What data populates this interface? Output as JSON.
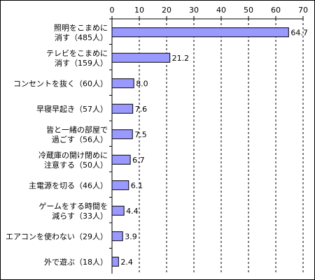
{
  "chart_data": {
    "type": "bar",
    "orientation": "horizontal",
    "categories": [
      [
        "照明をこまめに",
        "消す（485人）"
      ],
      [
        "テレビをこまめに",
        "消す（159人）"
      ],
      [
        "コンセントを抜く（60人）"
      ],
      [
        "早寝早起き（57人）"
      ],
      [
        "皆と一緒の部屋で",
        "過ごす（56人）"
      ],
      [
        "冷蔵庫の開け閉めに",
        "注意する（50人）"
      ],
      [
        "主電源を切る（46人）"
      ],
      [
        "ゲームをする時間を",
        "減らす（33人）"
      ],
      [
        "エアコンを使わない（29人）"
      ],
      [
        "外で遊ぶ（18人）"
      ]
    ],
    "values": [
      64.7,
      21.2,
      8.0,
      7.6,
      7.5,
      6.7,
      6.1,
      4.4,
      3.9,
      2.4
    ],
    "value_labels": [
      "64.7",
      "21.2",
      "8.0",
      "7.6",
      "7.5",
      "6.7",
      "6.1",
      "4.4",
      "3.9",
      "2.4"
    ],
    "xlim": [
      0,
      70
    ],
    "xticks": [
      0,
      10,
      20,
      30,
      40,
      50,
      60,
      70
    ],
    "xtick_labels": [
      "0",
      "10",
      "20",
      "30",
      "40",
      "50",
      "60",
      "70"
    ],
    "axis_position": "top",
    "grid": "dashed vertical",
    "legend": "none",
    "bar_color": "#9999ff",
    "bar_edge_color": "#000000"
  }
}
